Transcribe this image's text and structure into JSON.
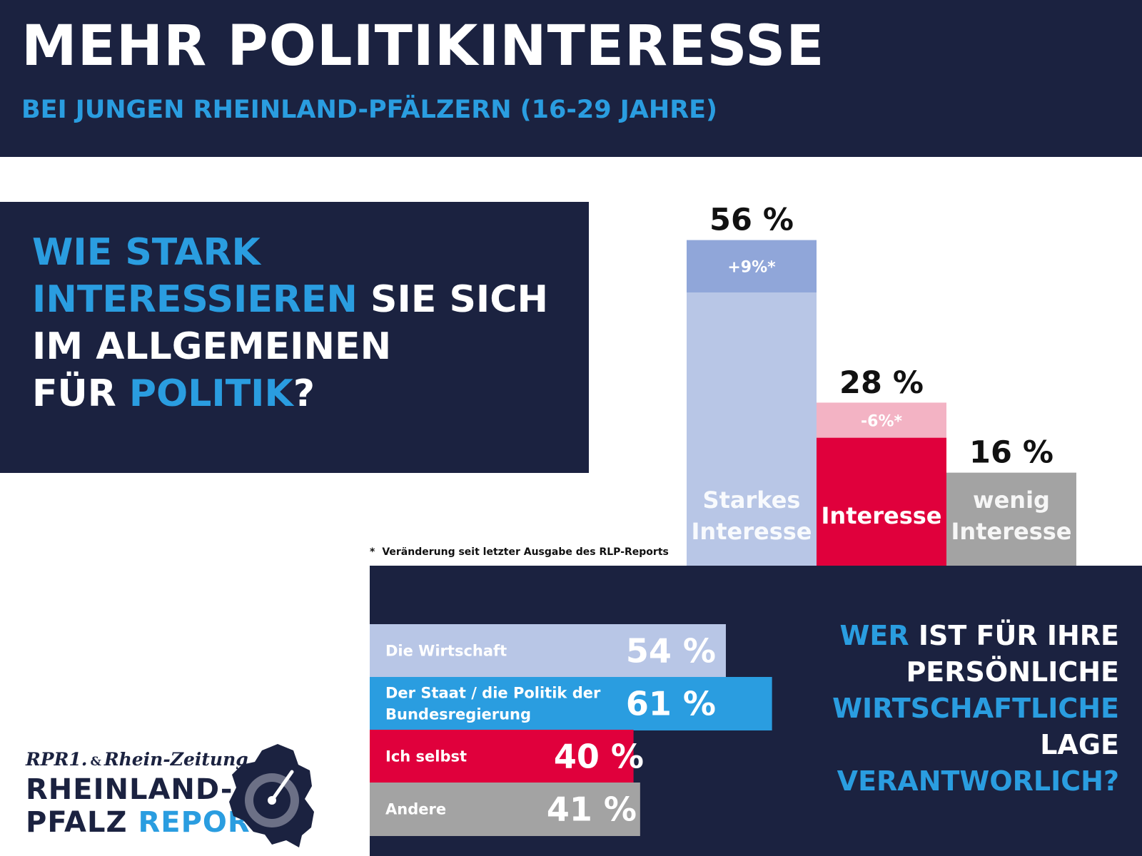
{
  "header": {
    "title": "MEHR POLITIKINTERESSE",
    "subtitle": "BEI JUNGEN RHEINLAND-PFÄLZERN (16-29 JAHRE)"
  },
  "question1": {
    "l1": "WIE STARK",
    "l2a": "INTERESSIEREN",
    "l2b": " SIE SICH",
    "l3": "IM ALLGEMEINEN",
    "l4a": "FÜR ",
    "l4b": "POLITIK",
    "l4c": "?"
  },
  "footnote": {
    "star": "*",
    "text": "Veränderung seit letzter Ausgabe des RLP-Reports"
  },
  "question2": {
    "l1a": "WER",
    "l1b": " IST FÜR IHRE",
    "l2": "PERSÖNLICHE",
    "l3": "WIRTSCHAFTLICHE",
    "l4": "LAGE",
    "l5": "VERANTWORLICH?"
  },
  "logo": {
    "brand1": "RPR1.",
    "amp": "&",
    "brand2": "Rhein-Zeitung",
    "line1": "RHEINLAND-",
    "line2a": "PFALZ ",
    "line2b": "REPORT"
  },
  "colors": {
    "navy": "#1b2240",
    "accent_blue": "#2a9de0",
    "light_blue": "#b8c6e6",
    "mid_blue": "#90a6d9",
    "red": "#e0003c",
    "pink": "#f3b3c4",
    "gray": "#a3a3a3"
  },
  "chart_data": [
    {
      "type": "bar",
      "categories": [
        "Starkes Interesse",
        "Interesse",
        "wenig Interesse"
      ],
      "values": [
        56,
        28,
        16
      ],
      "value_labels": [
        "56 %",
        "28 %",
        "16 %"
      ],
      "change_labels": [
        "+9%*",
        "-6%*",
        ""
      ],
      "changes": [
        9,
        -6,
        null
      ],
      "colors": [
        "#b8c6e6",
        "#e0003c",
        "#a3a3a3"
      ],
      "change_colors": [
        "#90a6d9",
        "#f3b3c4",
        ""
      ]
    },
    {
      "type": "bar",
      "orientation": "horizontal",
      "categories": [
        "Die Wirtschaft",
        "Der Staat / die Politik der Bundesregierung",
        "Ich selbst",
        "Andere"
      ],
      "category_lines": [
        [
          "Die Wirtschaft"
        ],
        [
          "Der Staat / die Politik der",
          "Bundesregierung"
        ],
        [
          "Ich selbst"
        ],
        [
          "Andere"
        ]
      ],
      "values": [
        54,
        61,
        40,
        41
      ],
      "value_labels": [
        "54 %",
        "61 %",
        "40 %",
        "41 %"
      ],
      "colors": [
        "#b8c6e6",
        "#2a9de0",
        "#e0003c",
        "#a3a3a3"
      ]
    }
  ]
}
